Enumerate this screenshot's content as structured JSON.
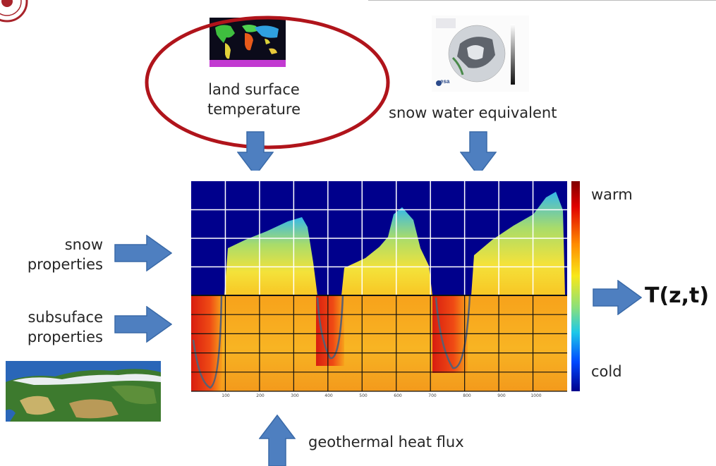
{
  "inputs": {
    "land_surface_temperature": "land surface temperature",
    "snow_water_equivalent": "snow water equivalent",
    "snow_properties": "snow properties",
    "subsurface_properties": "subsuface properties",
    "geothermal_heat_flux": "geothermal heat flux"
  },
  "output": {
    "label": "T(z,t)"
  },
  "colorbar": {
    "top_label": "warm",
    "bottom_label": "cold"
  },
  "plot": {
    "x_ticks": [
      "100",
      "200",
      "300",
      "400",
      "500",
      "600",
      "700",
      "800",
      "900",
      "1000"
    ]
  },
  "logos": {
    "esa": "esa"
  },
  "colors": {
    "arrow": "#4e7fc0",
    "arrow_stroke": "#3a6aa8",
    "highlight_ring": "#b0141b",
    "plot_sky": "#00008c"
  }
}
